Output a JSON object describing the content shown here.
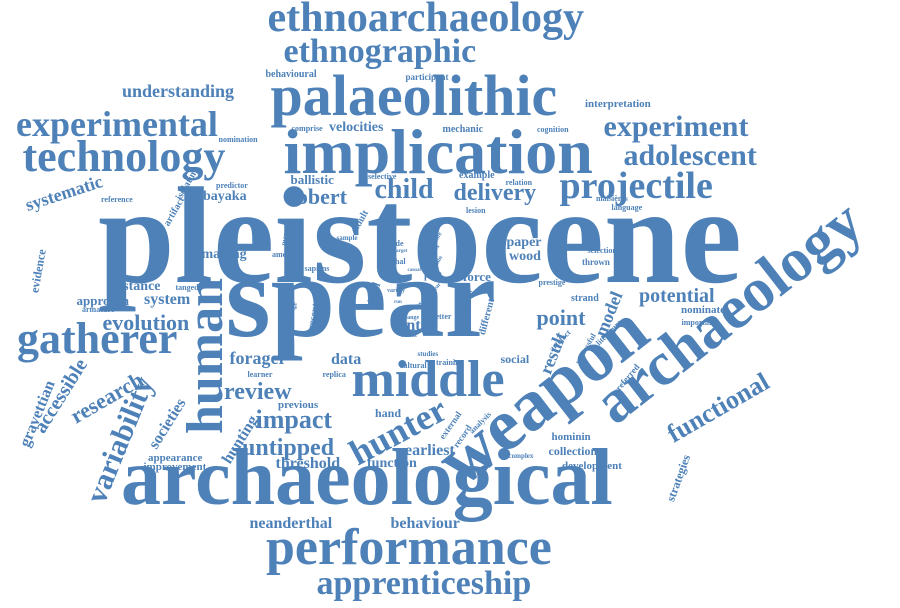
{
  "colors": {
    "word": "#4d81b8",
    "background": "#ffffff"
  },
  "words": {
    "pleistocene": "pleistocene",
    "spear": "spear",
    "archaeological": "archaeological",
    "weapon": "weapon",
    "archaeology": "archaeology",
    "implication": "implication",
    "palaeolithic": "palaeolithic",
    "performance": "performance",
    "middle": "middle",
    "human": "human",
    "ethnoarchaeology": "ethnoarchaeology",
    "technology": "technology",
    "gatherer": "gatherer",
    "experimental": "experimental",
    "hunter": "hunter",
    "projectile": "projectile",
    "apprenticeship": "apprenticeship",
    "ethnographic": "ethnographic",
    "experiment": "experiment",
    "adolescent": "adolescent",
    "variability": "variability",
    "functional": "functional",
    "child": "child",
    "delivery": "delivery",
    "review": "review",
    "impact": "impact",
    "untipped": "untipped",
    "robert": "robert",
    "evolution": "evolution",
    "research": "research",
    "potential": "potential",
    "point": "point",
    "model": "model",
    "result": "result",
    "understanding": "understanding",
    "systematic": "systematic",
    "accessible": "accessible",
    "forager": "forager",
    "gravettian": "gravettian",
    "societies": "societies",
    "hunting": "hunting",
    "threshold": "threshold",
    "function": "function",
    "earliest": "earliest",
    "behaviour": "behaviour",
    "neanderthal": "neanderthal",
    "velocities": "velocities",
    "ballistic": "ballistic",
    "bayaka": "bayaka",
    "distance": "distance",
    "approach": "approach",
    "system": "system",
    "making": "making",
    "evidence": "evidence",
    "data": "data",
    "font": "font",
    "paper": "paper",
    "wood": "wood",
    "force": "force",
    "collection": "collection",
    "hominin": "hominin",
    "development": "development",
    "strategies": "strategies",
    "nominate": "nominate",
    "social": "social",
    "hand": "hand",
    "previous": "previous",
    "appearance": "appearance",
    "improvement": "improvement",
    "interpretation": "interpretation",
    "behavioural": "behavioural",
    "participant": "participant",
    "mechanic": "mechanic",
    "cognition": "cognition",
    "comprise": "comprise",
    "nomination": "nomination",
    "isolating": "isolating",
    "artifact": "artifact",
    "reference": "reference",
    "predictor": "predictor",
    "selective": "selective",
    "example": "example",
    "relation": "relation",
    "lesion": "lesion",
    "maisieres": "maisières",
    "language": "language",
    "selection": "selection",
    "thrown": "thrown",
    "prestige": "prestige",
    "strand": "strand",
    "important": "important",
    "preferred": "preferred",
    "successful": "successful",
    "literature": "literature",
    "artefact": "artefact",
    "complex": "complex",
    "external": "external",
    "record": "record",
    "analysis": "analysis",
    "studies": "studies",
    "training": "training",
    "cultural": "cultural",
    "replica": "replica",
    "learner": "learner",
    "different": "different",
    "present": "present",
    "damage": "damage",
    "sapiens": "sapiens",
    "america": "america",
    "mammal": "mammal",
    "adult": "adult",
    "sample": "sample",
    "decade": "decade",
    "lethal": "lethal",
    "past": "past",
    "better": "better",
    "recent": "recent",
    "armature": "armature",
    "tanged": "tanged",
    "variety": "variety",
    "trial": "trial",
    "climate": "climate",
    "method": "method",
    "domain": "domain",
    "range": "range",
    "target": "target",
    "broad": "broad",
    "casual": "casual",
    "tip": "tip",
    "year": "year",
    "low": "low",
    "run": "run"
  }
}
